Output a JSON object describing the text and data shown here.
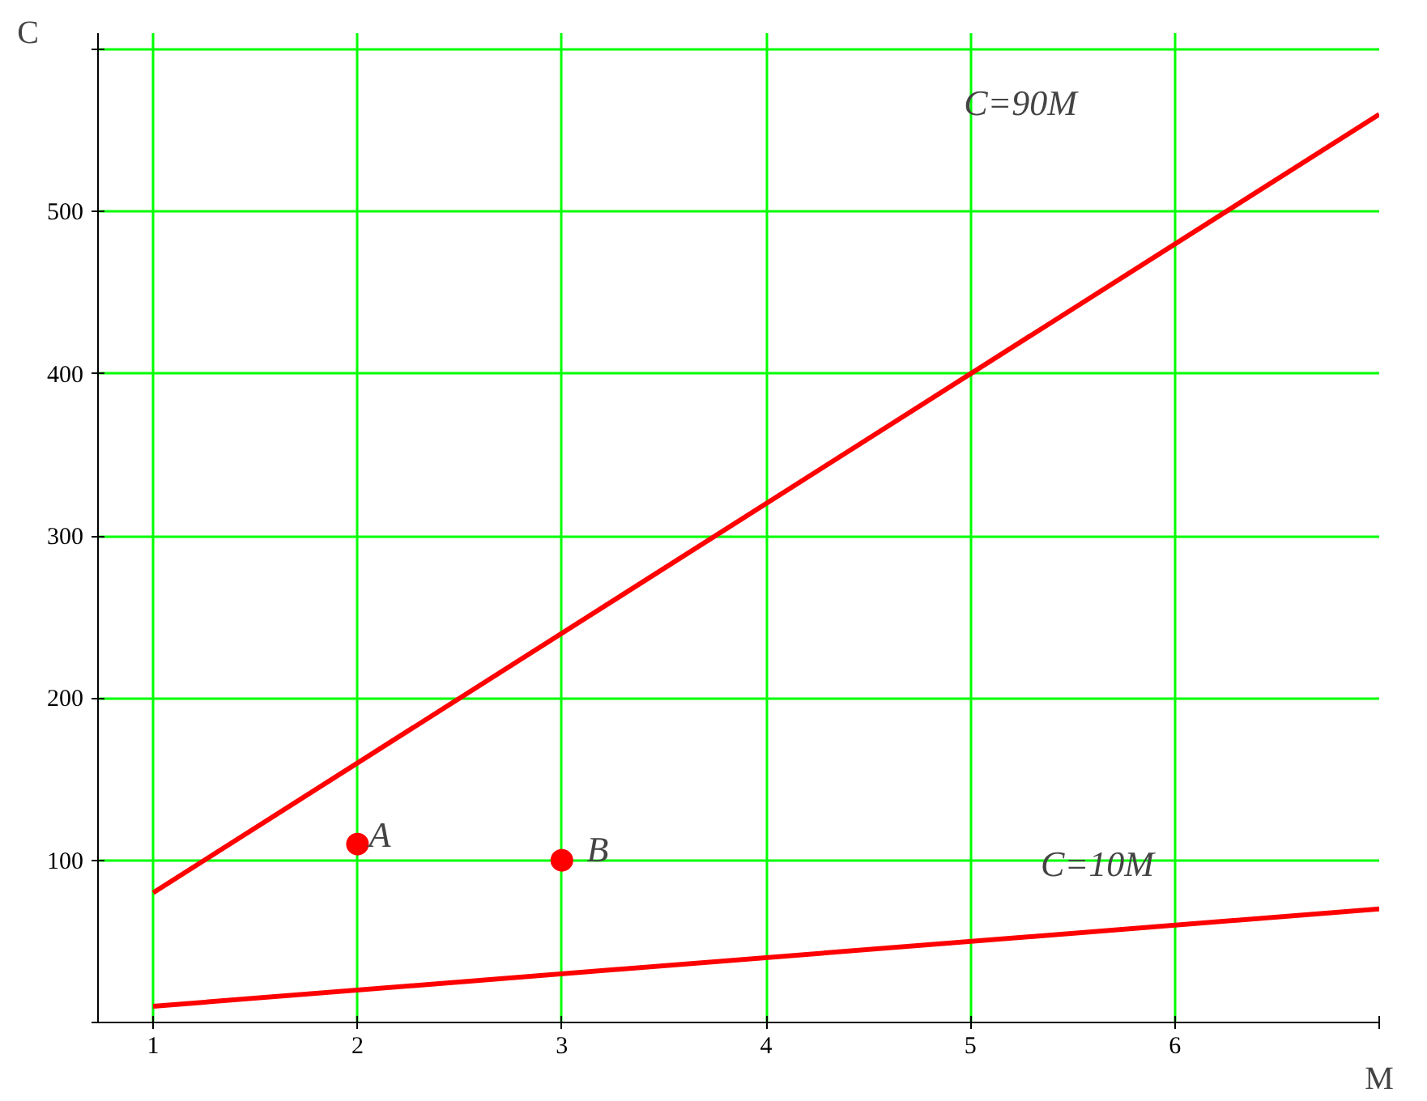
{
  "chart_data": {
    "type": "line",
    "xlabel": "M",
    "ylabel": "C",
    "xlim": [
      0.73,
      7
    ],
    "ylim": [
      0,
      610
    ],
    "xticks": [
      1,
      2,
      3,
      4,
      5,
      6,
      {
        "value": 7,
        "label": null
      }
    ],
    "yticks": [
      {
        "value": 0,
        "label": null
      },
      100,
      200,
      300,
      400,
      500,
      {
        "value": 600,
        "label": null
      }
    ],
    "grid": true,
    "series": [
      {
        "color": "#ff0000",
        "x": [
          1,
          7
        ],
        "values": [
          80,
          560
        ]
      },
      {
        "color": "#ff0000",
        "x": [
          1,
          7
        ],
        "values": [
          10,
          70
        ]
      },
      {
        "type": "scatter",
        "color": "#ff0000",
        "marker": "circle",
        "x": [
          2,
          3
        ],
        "values": [
          110,
          100
        ]
      }
    ],
    "annotations": [
      "C=90M",
      "C=10M",
      "A",
      "B"
    ]
  }
}
